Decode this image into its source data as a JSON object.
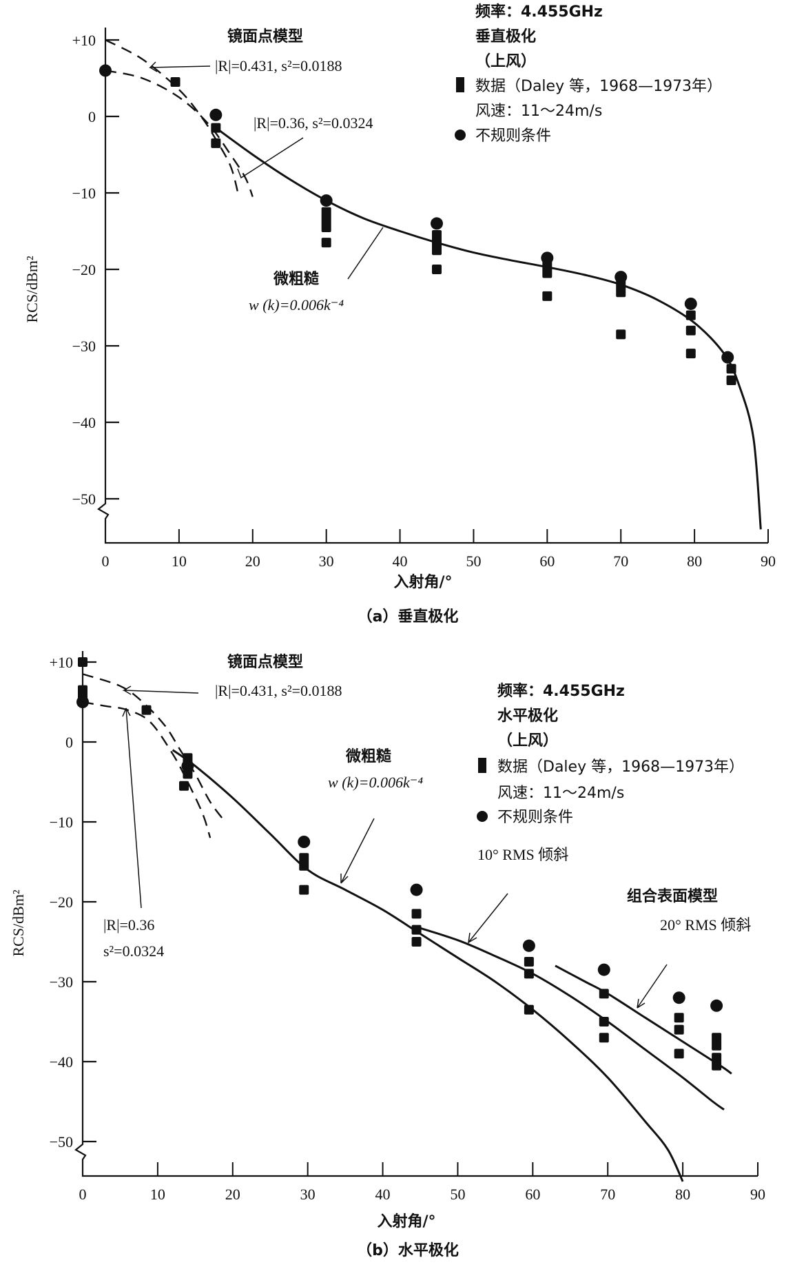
{
  "chart_data": [
    {
      "id": "a",
      "type": "scatter",
      "caption": "（a）垂直极化",
      "xlabel": "入射角/°",
      "ylabel": "RCS/dBm²",
      "xlim": [
        0,
        90
      ],
      "ylim": [
        -55,
        10
      ],
      "xticks": [
        0,
        10,
        20,
        30,
        40,
        50,
        60,
        70,
        80,
        90
      ],
      "xtick_labels": [
        "0",
        "10",
        "20",
        "30",
        "40",
        "50",
        "60",
        "70",
        "80",
        "90"
      ],
      "yticks": [
        10,
        0,
        -10,
        -20,
        -30,
        -40,
        -50
      ],
      "ytick_labels": [
        "+10",
        "0",
        "−10",
        "−20",
        "−30",
        "−40",
        "−50"
      ],
      "legend": {
        "position": "top-right",
        "lines": [
          "频率：4.455GHz",
          "垂直极化",
          "（上风）"
        ],
        "square_label": "数据（Daley 等，1968—1973年）",
        "wind_label": "风速：11～24m/s",
        "circle_label": "不规则条件"
      },
      "annotations": {
        "specular_title": "镜面点模型",
        "specular_1": "|R|=0.431, s²=0.0188",
        "specular_2": "|R|=0.36, s²=0.0324",
        "slight_title": "微粗糙",
        "slight_formula": "w (k)=0.006k⁻⁴"
      },
      "series": [
        {
          "name": "数据（Daley 等，1968—1973年）",
          "marker": "square",
          "points": [
            [
              9.5,
              4.5
            ],
            [
              15,
              -1.5
            ],
            [
              15,
              -3.5
            ],
            [
              30,
              -12.5
            ],
            [
              30,
              -13.5
            ],
            [
              30,
              -14.5
            ],
            [
              30,
              -16.5
            ],
            [
              45,
              -15.5
            ],
            [
              45,
              -16.5
            ],
            [
              45,
              -17.5
            ],
            [
              45,
              -20
            ],
            [
              60,
              -19.5
            ],
            [
              60,
              -20.5
            ],
            [
              60,
              -23.5
            ],
            [
              70,
              -22
            ],
            [
              70,
              -23
            ],
            [
              70,
              -28.5
            ],
            [
              79.5,
              -26
            ],
            [
              79.5,
              -28
            ],
            [
              79.5,
              -31
            ],
            [
              85,
              -33
            ],
            [
              85,
              -34.5
            ]
          ]
        },
        {
          "name": "不规则条件",
          "marker": "circle",
          "points": [
            [
              0,
              6
            ],
            [
              15,
              0.2
            ],
            [
              30,
              -11
            ],
            [
              45,
              -14
            ],
            [
              60,
              -18.5
            ],
            [
              70,
              -21
            ],
            [
              79.5,
              -24.5
            ],
            [
              84.5,
              -31.5
            ]
          ]
        },
        {
          "name": "微粗糙",
          "style": "solid",
          "points": [
            [
              15,
              -1.5
            ],
            [
              20,
              -5
            ],
            [
              25,
              -8.2
            ],
            [
              30,
              -11
            ],
            [
              35,
              -13.3
            ],
            [
              40,
              -15
            ],
            [
              45,
              -16.5
            ],
            [
              50,
              -17.8
            ],
            [
              55,
              -18.8
            ],
            [
              60,
              -19.7
            ],
            [
              65,
              -20.7
            ],
            [
              70,
              -22
            ],
            [
              75,
              -24
            ],
            [
              80,
              -27
            ],
            [
              84,
              -31
            ],
            [
              86,
              -35
            ],
            [
              88,
              -42
            ],
            [
              89,
              -54
            ]
          ]
        },
        {
          "name": "|R|=0.431, s²=0.0188",
          "style": "dashed",
          "points": [
            [
              0,
              10
            ],
            [
              5,
              7.5
            ],
            [
              10,
              3.5
            ],
            [
              13,
              0
            ],
            [
              15,
              -3
            ],
            [
              17,
              -6.5
            ],
            [
              18,
              -10
            ]
          ]
        },
        {
          "name": "|R|=0.36, s²=0.0324",
          "style": "dashed",
          "points": [
            [
              0,
              6
            ],
            [
              5,
              5
            ],
            [
              10,
              2.5
            ],
            [
              14,
              -1
            ],
            [
              17,
              -5
            ],
            [
              19,
              -8
            ],
            [
              20,
              -10.5
            ]
          ]
        }
      ]
    },
    {
      "id": "b",
      "type": "scatter",
      "caption": "（b）水平极化",
      "xlabel": "入射角/°",
      "ylabel": "RCS/dBm²",
      "xlim": [
        0,
        90
      ],
      "ylim": [
        -55,
        10
      ],
      "xticks": [
        0,
        10,
        20,
        30,
        40,
        50,
        60,
        70,
        80,
        90
      ],
      "xtick_labels": [
        "0",
        "10",
        "20",
        "30",
        "40",
        "50",
        "60",
        "70",
        "80",
        "90"
      ],
      "yticks": [
        10,
        0,
        -10,
        -20,
        -30,
        -40,
        -50
      ],
      "ytick_labels": [
        "+10",
        "0",
        "−10",
        "−20",
        "−30",
        "−40",
        "−50"
      ],
      "legend": {
        "position": "top-right",
        "lines": [
          "频率：4.455GHz",
          "水平极化",
          "（上风）"
        ],
        "square_label": "数据（Daley 等，1968—1973年）",
        "wind_label": "风速：11～24m/s",
        "circle_label": "不规则条件"
      },
      "annotations": {
        "specular_title": "镜面点模型",
        "specular_1": "|R|=0.431, s²=0.0188",
        "specular_2a": "|R|=0.36",
        "specular_2b": "s²=0.0324",
        "slight_title": "微粗糙",
        "slight_formula": "w (k)=0.006k⁻⁴",
        "tilt10": "10° RMS 倾斜",
        "composite_title": "组合表面模型",
        "tilt20": "20° RMS 倾斜"
      },
      "series": [
        {
          "name": "数据（Daley 等，1968—1973年）",
          "marker": "square",
          "points": [
            [
              0,
              10
            ],
            [
              0,
              6.5
            ],
            [
              0,
              5.5
            ],
            [
              8.5,
              4
            ],
            [
              14,
              -2
            ],
            [
              14,
              -3
            ],
            [
              14,
              -4
            ],
            [
              13.5,
              -5.5
            ],
            [
              29.5,
              -14.5
            ],
            [
              29.5,
              -15.5
            ],
            [
              29.5,
              -18.5
            ],
            [
              44.5,
              -21.5
            ],
            [
              44.5,
              -23.5
            ],
            [
              44.5,
              -25
            ],
            [
              59.5,
              -27.5
            ],
            [
              59.5,
              -29
            ],
            [
              59.5,
              -33.5
            ],
            [
              69.5,
              -31.5
            ],
            [
              69.5,
              -35
            ],
            [
              69.5,
              -37
            ],
            [
              79.5,
              -34.5
            ],
            [
              79.5,
              -36
            ],
            [
              79.5,
              -39
            ],
            [
              84.5,
              -37
            ],
            [
              84.5,
              -38
            ],
            [
              84.5,
              -39.5
            ],
            [
              84.5,
              -40.5
            ]
          ]
        },
        {
          "name": "不规则条件",
          "marker": "circle",
          "points": [
            [
              0,
              5
            ],
            [
              14,
              -3
            ],
            [
              29.5,
              -12.5
            ],
            [
              44.5,
              -18.5
            ],
            [
              59.5,
              -25.5
            ],
            [
              69.5,
              -28.5
            ],
            [
              79.5,
              -32
            ],
            [
              84.5,
              -33
            ]
          ]
        },
        {
          "name": "微粗糙",
          "style": "solid",
          "points": [
            [
              12,
              -1
            ],
            [
              15,
              -3
            ],
            [
              20,
              -7
            ],
            [
              25,
              -11.5
            ],
            [
              30,
              -16
            ],
            [
              35,
              -18.5
            ],
            [
              40,
              -21
            ],
            [
              45,
              -24
            ],
            [
              50,
              -27
            ],
            [
              55,
              -30
            ],
            [
              60,
              -33.5
            ],
            [
              65,
              -37.5
            ],
            [
              70,
              -42
            ],
            [
              75,
              -47.5
            ],
            [
              78,
              -51
            ],
            [
              80,
              -55
            ]
          ]
        },
        {
          "name": "10° RMS 倾斜",
          "style": "solid",
          "points": [
            [
              44,
              -23
            ],
            [
              50,
              -24.8
            ],
            [
              55,
              -26.8
            ],
            [
              60,
              -29
            ],
            [
              65,
              -31.8
            ],
            [
              70,
              -35
            ],
            [
              75,
              -38.5
            ],
            [
              80,
              -42
            ],
            [
              84,
              -45
            ],
            [
              85.5,
              -46
            ]
          ]
        },
        {
          "name": "20° RMS 倾斜",
          "style": "solid",
          "points": [
            [
              63,
              -28
            ],
            [
              67,
              -30
            ],
            [
              70,
              -31.5
            ],
            [
              75,
              -34.5
            ],
            [
              80,
              -37.5
            ],
            [
              85,
              -40.5
            ],
            [
              86.5,
              -41.5
            ]
          ]
        },
        {
          "name": "|R|=0.431, s²=0.0188",
          "style": "dashed",
          "points": [
            [
              0,
              8.5
            ],
            [
              5,
              7
            ],
            [
              8,
              5
            ],
            [
              11,
              2
            ],
            [
              13,
              -1
            ],
            [
              15,
              -4
            ],
            [
              17,
              -7.5
            ],
            [
              19,
              -10
            ]
          ]
        },
        {
          "name": "|R|=0.36, s²=0.0324",
          "style": "dashed",
          "points": [
            [
              0,
              5
            ],
            [
              3,
              4.5
            ],
            [
              6,
              4
            ],
            [
              9,
              2.5
            ],
            [
              12,
              -1.5
            ],
            [
              14,
              -5
            ],
            [
              16,
              -9
            ],
            [
              17,
              -12
            ]
          ]
        }
      ]
    }
  ]
}
